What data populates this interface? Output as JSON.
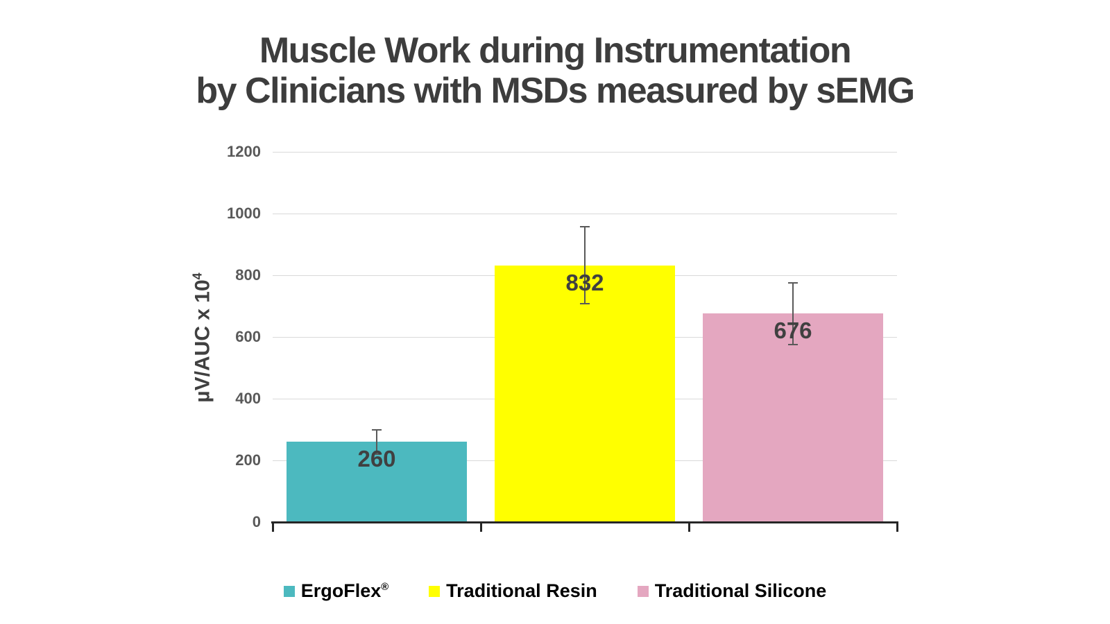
{
  "title": {
    "line1": "Muscle Work during Instrumentation",
    "line2": "by Clinicians with MSDs measured by sEMG"
  },
  "chart_data": {
    "type": "bar",
    "title": "Muscle Work during Instrumentation by Clinicians with MSDs measured by sEMG",
    "categories": [
      "ErgoFlex®",
      "Traditional Resin",
      "Traditional Silicone"
    ],
    "values": [
      260,
      832,
      676
    ],
    "value_labels": [
      "260",
      "832",
      "676"
    ],
    "error_plus": [
      40,
      125,
      100
    ],
    "error_minus": [
      40,
      125,
      100
    ],
    "bar_colors": [
      "#4cb9bf",
      "#ffff00",
      "#e4a7c0"
    ],
    "ylabel_text": "µV/AUC x 10",
    "ylabel_sup": "4",
    "xlabel": "",
    "ylim": [
      0,
      1200
    ],
    "yticks": [
      0,
      200,
      400,
      600,
      800,
      1000,
      1200
    ],
    "grid": true,
    "legend_position": "bottom",
    "legend": [
      {
        "label": "ErgoFlex",
        "sup": "®",
        "color": "#4cb9bf"
      },
      {
        "label": "Traditional Resin",
        "sup": "",
        "color": "#ffff00"
      },
      {
        "label": "Traditional Silicone",
        "sup": "",
        "color": "#e4a7c0"
      }
    ]
  },
  "colors": {
    "title_text": "#3d3d3d",
    "tick_text": "#595959",
    "value_text": "#404040",
    "gridline": "#d9d9d9",
    "axis_line": "#262626",
    "error_bar": "#595959",
    "background": "#ffffff"
  }
}
